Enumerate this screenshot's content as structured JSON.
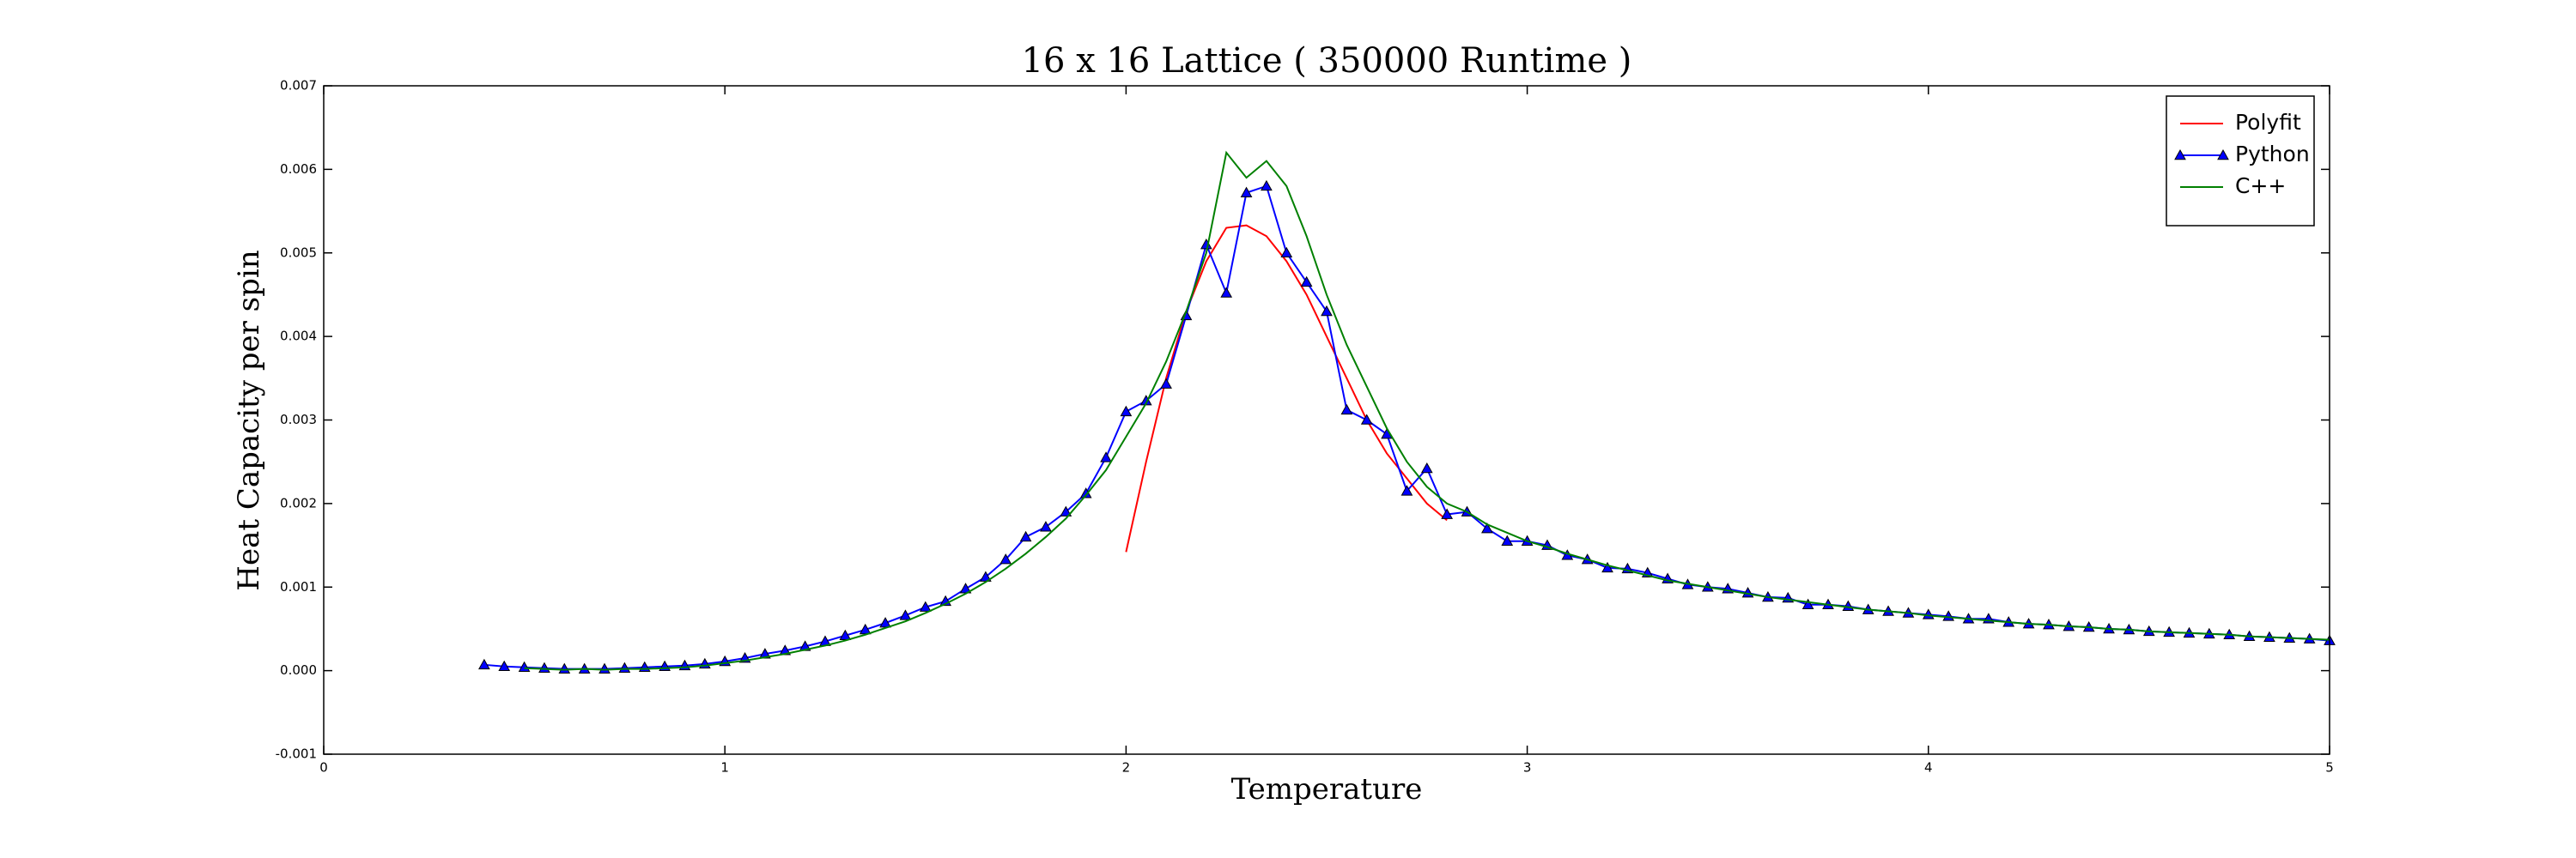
{
  "chart_data": {
    "type": "line",
    "title": "16 x 16 Lattice ( 350000 Runtime )",
    "x_label": "Temperature",
    "y_label": "Heat Capacity per spin",
    "xlim": [
      0,
      5
    ],
    "xticks": [
      0,
      1,
      2,
      3,
      4,
      5
    ],
    "ylim": [
      -0.001,
      0.007
    ],
    "yticks": [
      {
        "value": -0.001,
        "label": "-0.001"
      },
      {
        "value": 0,
        "label": "0.000"
      },
      {
        "value": 0.001,
        "label": "0.001"
      },
      {
        "value": 0.002,
        "label": "0.002"
      },
      {
        "value": 0.003,
        "label": "0.003"
      },
      {
        "value": 0.004,
        "label": "0.004"
      },
      {
        "value": 0.005,
        "label": "0.005"
      },
      {
        "value": 0.006,
        "label": "0.006"
      },
      {
        "value": 0.007,
        "label": "0.007"
      }
    ],
    "grid": false,
    "legend": "upper right",
    "series": [
      {
        "name": "Polyfit",
        "color": "#ff0000",
        "marker": "none",
        "x": [
          2.0,
          2.05,
          2.1,
          2.15,
          2.2,
          2.25,
          2.3,
          2.35,
          2.4,
          2.45,
          2.5,
          2.55,
          2.6,
          2.65,
          2.7,
          2.75,
          2.8
        ],
        "values": [
          0.00142,
          0.0025,
          0.0035,
          0.0043,
          0.0049,
          0.0053,
          0.00533,
          0.0052,
          0.0049,
          0.0045,
          0.004,
          0.0035,
          0.003,
          0.0026,
          0.0023,
          0.002,
          0.0018
        ]
      },
      {
        "name": "Python",
        "color": "#0000ff",
        "marker": "triangle",
        "x": [
          0.4,
          0.45,
          0.5,
          0.55,
          0.6,
          0.65,
          0.7,
          0.75,
          0.8,
          0.85,
          0.9,
          0.95,
          1.0,
          1.05,
          1.1,
          1.15,
          1.2,
          1.25,
          1.3,
          1.35,
          1.4,
          1.45,
          1.5,
          1.55,
          1.6,
          1.65,
          1.7,
          1.75,
          1.8,
          1.85,
          1.9,
          1.95,
          2.0,
          2.05,
          2.1,
          2.15,
          2.2,
          2.25,
          2.3,
          2.35,
          2.4,
          2.45,
          2.5,
          2.55,
          2.6,
          2.65,
          2.7,
          2.75,
          2.8,
          2.85,
          2.9,
          2.95,
          3.0,
          3.05,
          3.1,
          3.15,
          3.2,
          3.25,
          3.3,
          3.35,
          3.4,
          3.45,
          3.5,
          3.55,
          3.6,
          3.65,
          3.7,
          3.75,
          3.8,
          3.85,
          3.9,
          3.95,
          4.0,
          4.05,
          4.1,
          4.15,
          4.2,
          4.25,
          4.3,
          4.35,
          4.4,
          4.45,
          4.5,
          4.55,
          4.6,
          4.65,
          4.7,
          4.75,
          4.8,
          4.85,
          4.9,
          4.95,
          5.0
        ],
        "values": [
          7e-05,
          5e-05,
          4e-05,
          3e-05,
          2e-05,
          2e-05,
          2e-05,
          3e-05,
          4e-05,
          5e-05,
          6e-05,
          8e-05,
          0.00011,
          0.00015,
          0.0002,
          0.00024,
          0.00029,
          0.00035,
          0.00042,
          0.00049,
          0.00057,
          0.00066,
          0.00076,
          0.00083,
          0.00098,
          0.00112,
          0.00133,
          0.0016,
          0.00172,
          0.0019,
          0.00212,
          0.00255,
          0.0031,
          0.00323,
          0.00343,
          0.00425,
          0.0051,
          0.00452,
          0.00572,
          0.0058,
          0.005,
          0.00465,
          0.0043,
          0.00312,
          0.003,
          0.00283,
          0.00215,
          0.00242,
          0.00187,
          0.0019,
          0.0017,
          0.00155,
          0.00155,
          0.0015,
          0.00138,
          0.00133,
          0.00123,
          0.00122,
          0.00117,
          0.0011,
          0.00103,
          0.001,
          0.00098,
          0.00093,
          0.00088,
          0.00087,
          0.00079,
          0.00079,
          0.00077,
          0.00073,
          0.00071,
          0.00069,
          0.00067,
          0.00065,
          0.00062,
          0.00062,
          0.00058,
          0.00056,
          0.00055,
          0.00053,
          0.00052,
          0.0005,
          0.00049,
          0.00047,
          0.00046,
          0.00045,
          0.00044,
          0.00043,
          0.00041,
          0.0004,
          0.00039,
          0.00038,
          0.00036
        ]
      },
      {
        "name": "C++",
        "color": "#008000",
        "marker": "none",
        "x": [
          0.5,
          0.55,
          0.6,
          0.65,
          0.7,
          0.75,
          0.8,
          0.85,
          0.9,
          0.95,
          1.0,
          1.05,
          1.1,
          1.15,
          1.2,
          1.25,
          1.3,
          1.35,
          1.4,
          1.45,
          1.5,
          1.55,
          1.6,
          1.65,
          1.7,
          1.75,
          1.8,
          1.85,
          1.9,
          1.95,
          2.0,
          2.05,
          2.1,
          2.15,
          2.2,
          2.25,
          2.3,
          2.35,
          2.4,
          2.45,
          2.5,
          2.55,
          2.6,
          2.65,
          2.7,
          2.75,
          2.8,
          2.85,
          2.9,
          2.95,
          3.0,
          3.05,
          3.1,
          3.15,
          3.2,
          3.25,
          3.3,
          3.35,
          3.4,
          3.45,
          3.5,
          3.55,
          3.6,
          3.65,
          3.7,
          3.75,
          3.8,
          3.85,
          3.9,
          3.95,
          4.0,
          4.05,
          4.1,
          4.15,
          4.2,
          4.25,
          4.3,
          4.35,
          4.4,
          4.45,
          4.5,
          4.55,
          4.6,
          4.65,
          4.7,
          4.75,
          4.8,
          4.85,
          4.9,
          4.95,
          5.0
        ],
        "values": [
          3e-05,
          2e-05,
          1e-05,
          2e-05,
          1e-05,
          2e-05,
          2e-05,
          3e-05,
          4e-05,
          6e-05,
          9e-05,
          0.00012,
          0.00016,
          0.0002,
          0.00025,
          0.0003,
          0.00036,
          0.00043,
          0.00051,
          0.00059,
          0.00069,
          0.0008,
          0.00092,
          0.00106,
          0.00122,
          0.0014,
          0.0016,
          0.00182,
          0.0021,
          0.0024,
          0.0028,
          0.0032,
          0.0037,
          0.0043,
          0.005,
          0.0062,
          0.0059,
          0.0061,
          0.0058,
          0.0052,
          0.0045,
          0.0039,
          0.0034,
          0.0029,
          0.0025,
          0.0022,
          0.002,
          0.0019,
          0.00175,
          0.00165,
          0.00155,
          0.00148,
          0.0014,
          0.00133,
          0.00126,
          0.0012,
          0.00114,
          0.00108,
          0.00104,
          0.001,
          0.00096,
          0.00092,
          0.00088,
          0.00085,
          0.00082,
          0.00079,
          0.00076,
          0.00073,
          0.00071,
          0.00069,
          0.00066,
          0.00064,
          0.00062,
          0.0006,
          0.00058,
          0.00056,
          0.00055,
          0.00053,
          0.00052,
          0.0005,
          0.00049,
          0.00047,
          0.00046,
          0.00045,
          0.00044,
          0.00043,
          0.00041,
          0.0004,
          0.00039,
          0.00038,
          0.00037
        ]
      }
    ]
  }
}
